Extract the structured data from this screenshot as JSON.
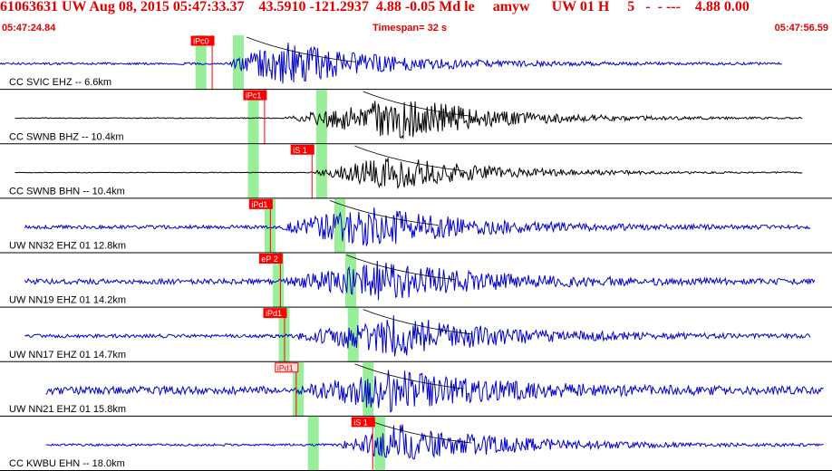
{
  "header": {
    "title": "61063631 UW Aug 08, 2015 05:47:33.37    43.5910 -121.2937  4.88 -0.05 Md le     amyw      UW 01 H     5   -  - ---    4.88 0.00",
    "time_start": "05:47:24.84",
    "timespan": "Timespan=  32 s",
    "time_end": "05:47:56.59"
  },
  "colors": {
    "header_text": "#e00000",
    "trace_blue": "#0000cc",
    "trace_black": "#000000",
    "pick_red": "#ff0000",
    "window_green": "#99ee99"
  },
  "traces": [
    {
      "label": "CC SVIC EHZ -- 6.6km",
      "color": "blue",
      "pick": {
        "text": "iPc0",
        "style": "filled",
        "t": 0.255
      },
      "green_t": [
        0.235,
        0.28
      ],
      "trace_start_t": 0.0,
      "trace_end_t": 0.94,
      "onset_t": 0.27,
      "peak_t": 0.34,
      "amp": 0.9,
      "noise": 0.05
    },
    {
      "label": "CC SWNB BHZ -- 10.4km",
      "color": "black",
      "pick": {
        "text": "iPc1",
        "style": "filled",
        "t": 0.318
      },
      "green_t": [
        0.298,
        0.38
      ],
      "trace_start_t": 0.018,
      "trace_end_t": 0.965,
      "onset_t": 0.34,
      "peak_t": 0.48,
      "amp": 0.9,
      "noise": 0.02
    },
    {
      "label": "CC SWNB BHN -- 10.4km",
      "color": "black",
      "pick": {
        "text": "iS 1",
        "style": "filled",
        "t": 0.375
      },
      "green_t": [
        0.298,
        0.38
      ],
      "trace_start_t": 0.018,
      "trace_end_t": 0.965,
      "onset_t": 0.37,
      "peak_t": 0.47,
      "amp": 0.7,
      "noise": 0.02
    },
    {
      "label": "UW NN32 EHZ 01 12.8km",
      "color": "blue",
      "pick": {
        "text": "iPd1",
        "style": "filled",
        "t": 0.325
      },
      "green_t": [
        0.318,
        0.402
      ],
      "trace_start_t": 0.03,
      "trace_end_t": 0.975,
      "onset_t": 0.33,
      "peak_t": 0.44,
      "amp": 0.9,
      "noise": 0.08
    },
    {
      "label": "UW NN19 EHZ 01 14.2km",
      "color": "blue",
      "pick": {
        "text": "eP 2",
        "style": "filled",
        "t": 0.337
      },
      "green_t": [
        0.328,
        0.415
      ],
      "trace_start_t": 0.03,
      "trace_end_t": 0.98,
      "onset_t": 0.34,
      "peak_t": 0.46,
      "amp": 0.9,
      "noise": 0.12
    },
    {
      "label": "UW NN17 EHZ 01 14.7km",
      "color": "blue",
      "pick": {
        "text": "iPd1",
        "style": "filled",
        "t": 0.342
      },
      "green_t": [
        0.335,
        0.418
      ],
      "trace_start_t": 0.03,
      "trace_end_t": 0.975,
      "onset_t": 0.35,
      "peak_t": 0.48,
      "amp": 0.9,
      "noise": 0.08
    },
    {
      "label": "UW NN21 EHZ 01 15.8km",
      "color": "blue",
      "pick": {
        "text": "iPd1",
        "style": "outline",
        "t": 0.356
      },
      "green_t": [
        0.352,
        0.436
      ],
      "trace_start_t": 0.055,
      "trace_end_t": 0.99,
      "onset_t": 0.36,
      "peak_t": 0.47,
      "amp": 0.9,
      "noise": 0.18
    },
    {
      "label": "CC KWBU EHN -- 18.0km",
      "color": "blue",
      "pick": {
        "text": "iS 1",
        "style": "filled",
        "t": 0.448
      },
      "green_t": [
        0.37,
        0.45
      ],
      "trace_start_t": 0.055,
      "trace_end_t": 0.99,
      "onset_t": 0.4,
      "peak_t": 0.48,
      "amp": 0.9,
      "noise": 0.05
    }
  ]
}
